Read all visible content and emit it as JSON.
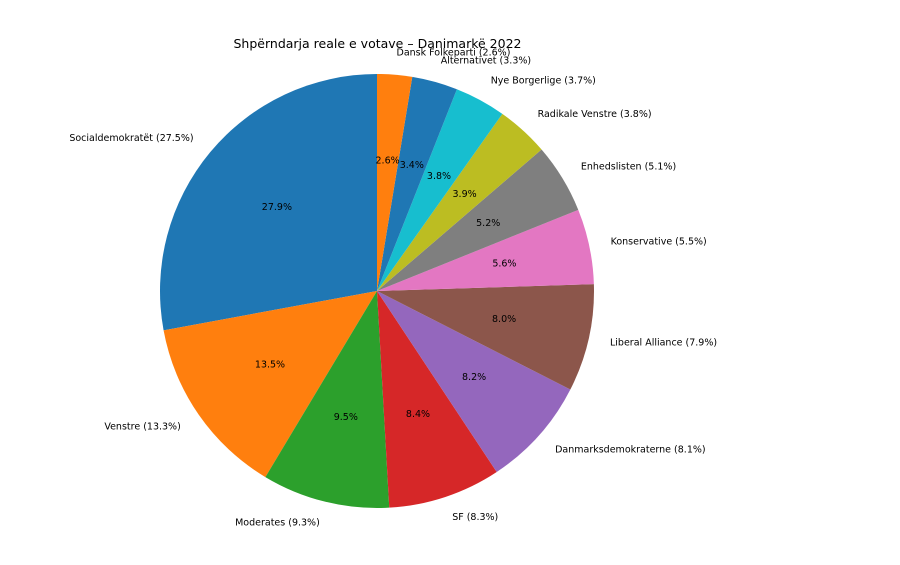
{
  "chart_data": {
    "type": "pie",
    "title": "Shpërndarja reale e votave – Danimarkë 2022",
    "slices": [
      {
        "label": "Socialdemokratët (27.5%)",
        "pct": "27.9%",
        "value": 27.9,
        "color": "#1f77b4"
      },
      {
        "label": "Venstre (13.3%)",
        "pct": "13.5%",
        "value": 13.5,
        "color": "#ff7f0e"
      },
      {
        "label": "Moderates (9.3%)",
        "pct": "9.5%",
        "value": 9.5,
        "color": "#2ca02c"
      },
      {
        "label": "SF (8.3%)",
        "pct": "8.4%",
        "value": 8.4,
        "color": "#d62728"
      },
      {
        "label": "Danmarksdemokraterne (8.1%)",
        "pct": "8.2%",
        "value": 8.2,
        "color": "#9467bd"
      },
      {
        "label": "Liberal Alliance (7.9%)",
        "pct": "8.0%",
        "value": 8.0,
        "color": "#8c564b"
      },
      {
        "label": "Konservative (5.5%)",
        "pct": "5.6%",
        "value": 5.6,
        "color": "#e377c2"
      },
      {
        "label": "Enhedslisten (5.1%)",
        "pct": "5.2%",
        "value": 5.2,
        "color": "#7f7f7f"
      },
      {
        "label": "Radikale Venstre (3.8%)",
        "pct": "3.9%",
        "value": 3.9,
        "color": "#bcbd22"
      },
      {
        "label": "Nye Borgerlige (3.7%)",
        "pct": "3.8%",
        "value": 3.8,
        "color": "#17becf"
      },
      {
        "label": "Alternativet (3.3%)",
        "pct": "3.4%",
        "value": 3.4,
        "color": "#1f77b4"
      },
      {
        "label": "Dansk Folkeparti (2.6%)",
        "pct": "2.6%",
        "value": 2.6,
        "color": "#ff7f0e"
      }
    ]
  }
}
